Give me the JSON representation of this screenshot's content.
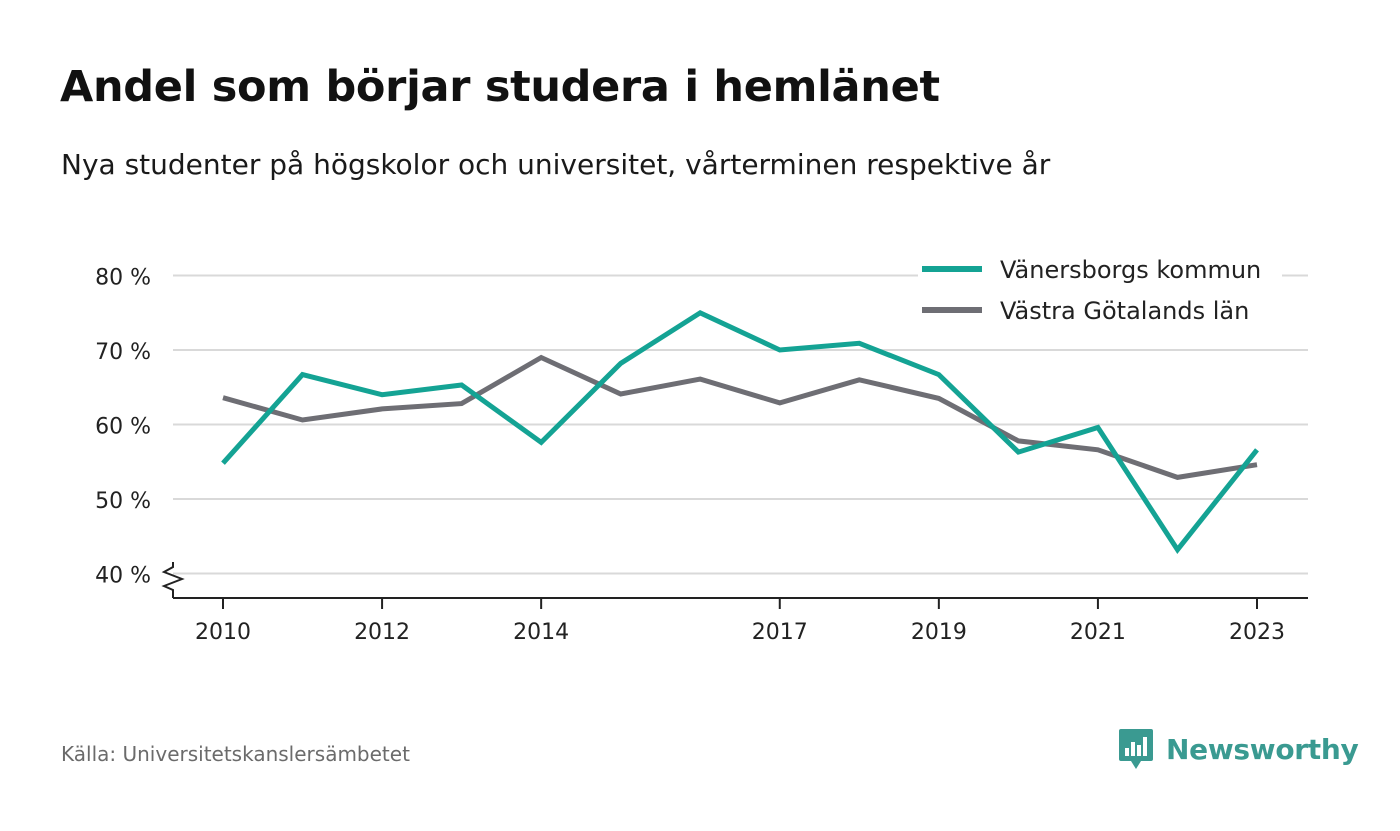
{
  "header": {
    "title": "Andel som börjar studera i hemlänet",
    "subtitle": "Nya studenter på högskolor och universitet, vårterminen respektive år"
  },
  "footer": {
    "source": "Källa: Universitetskanslersämbetet",
    "brand": "Newsworthy"
  },
  "colors": {
    "series_1": "#14a394",
    "series_2": "#6e6e74",
    "grid": "#d9d9d9",
    "axis": "#222222",
    "brand": "#3a9a91"
  },
  "chart_data": {
    "type": "line",
    "x": [
      2010,
      2011,
      2012,
      2013,
      2014,
      2015,
      2016,
      2017,
      2018,
      2019,
      2020,
      2021,
      2022,
      2023
    ],
    "x_tick_labels": [
      "2010",
      "2012",
      "2014",
      "2017",
      "2019",
      "2021",
      "2023"
    ],
    "y_ticks": [
      40,
      50,
      60,
      70,
      80
    ],
    "y_tick_labels": [
      "40 %",
      "50 %",
      "60 %",
      "70 %",
      "80 %"
    ],
    "ylim": [
      40,
      80
    ],
    "grid": true,
    "y_axis_break": true,
    "legend_position": "top-right",
    "series": [
      {
        "name": "Vänersborgs kommun",
        "values": [
          54.8,
          66.7,
          64.0,
          65.3,
          57.6,
          68.2,
          75.0,
          70.0,
          70.9,
          66.7,
          56.3,
          59.6,
          43.2,
          56.6
        ]
      },
      {
        "name": "Västra Götalands län",
        "values": [
          63.6,
          60.6,
          62.1,
          62.8,
          69.0,
          64.1,
          66.1,
          62.9,
          66.0,
          63.5,
          57.8,
          56.6,
          52.9,
          54.6
        ]
      }
    ]
  }
}
